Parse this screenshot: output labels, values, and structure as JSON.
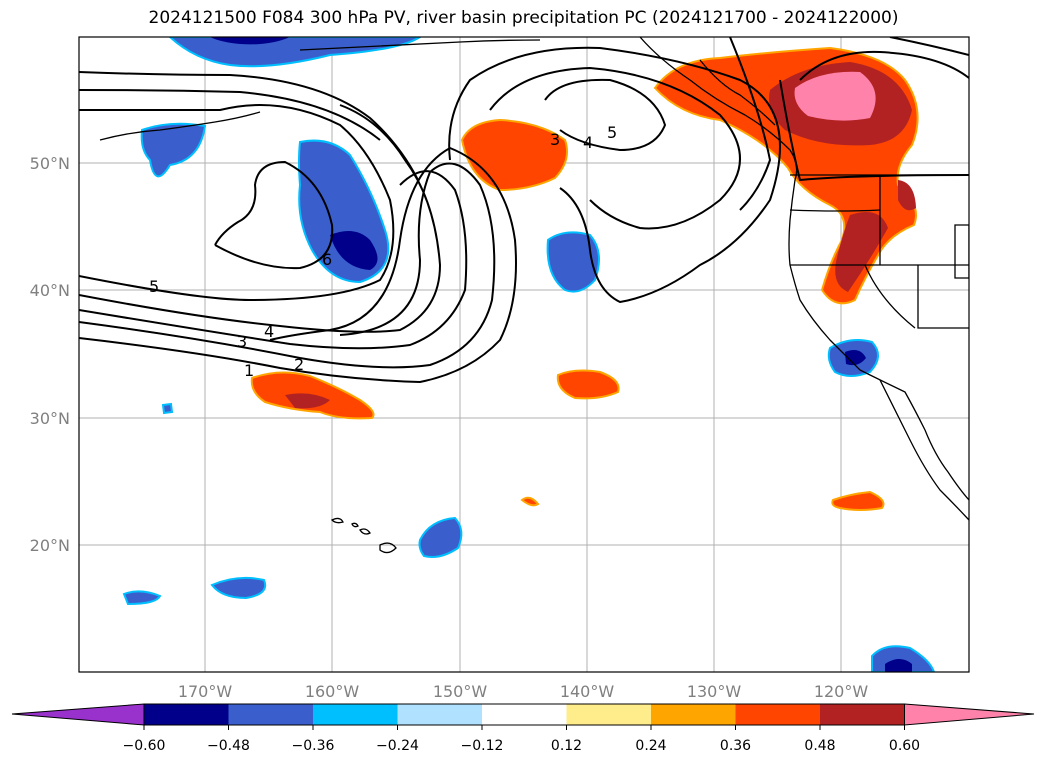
{
  "title": "2024121500 F084 300 hPa PV, river basin precipitation PC (2024121700 - 2024122000)",
  "map": {
    "lon_ticks": [
      "170°W",
      "160°W",
      "150°W",
      "140°W",
      "130°W",
      "120°W"
    ],
    "lat_ticks": [
      "50°N",
      "40°N",
      "30°N",
      "20°N"
    ],
    "contour_labels": [
      "1",
      "2",
      "3",
      "4",
      "5",
      "3",
      "4",
      "5",
      "6"
    ],
    "colors": {
      "coast": "#000000",
      "grid": "#b0b0b0",
      "contour": "#000000"
    }
  },
  "colorbar": {
    "tick_labels": [
      "−0.60",
      "−0.48",
      "−0.36",
      "−0.24",
      "−0.12",
      "0.12",
      "0.24",
      "0.36",
      "0.48",
      "0.60"
    ],
    "colors": [
      "#9932cc",
      "#00008b",
      "#3a5fcd",
      "#00bfff",
      "#b0e2ff",
      "#ffffff",
      "#ffec8b",
      "#ffa500",
      "#ff4500",
      "#b22222",
      "#ff82ab"
    ]
  }
}
